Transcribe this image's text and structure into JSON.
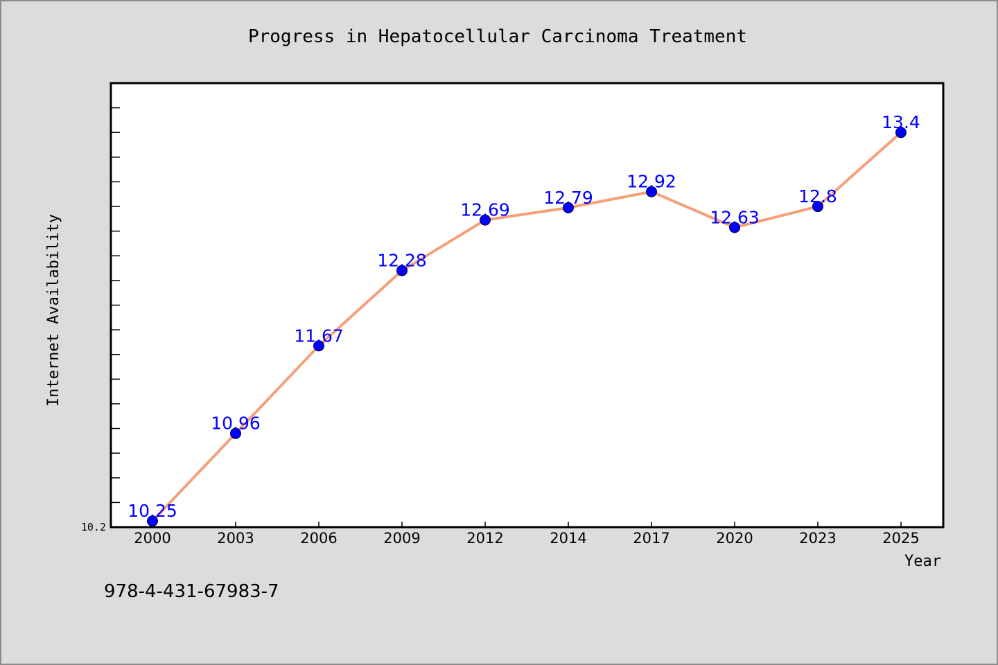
{
  "chart_data": {
    "type": "line",
    "title": "Progress in Hepatocellular Carcinoma Treatment",
    "xlabel": "Year",
    "ylabel": "Internet Availability",
    "categories": [
      "2000",
      "2003",
      "2006",
      "2009",
      "2012",
      "2014",
      "2017",
      "2020",
      "2023",
      "2025"
    ],
    "values": [
      10.25,
      10.96,
      11.67,
      12.28,
      12.69,
      12.79,
      12.92,
      12.63,
      12.8,
      13.4
    ],
    "data_labels": [
      "10.25",
      "10.96",
      "11.67",
      "12.28",
      "12.69",
      "12.79",
      "12.92",
      "12.63",
      "12.8",
      "13.4"
    ],
    "ylim": [
      10.2,
      13.8
    ],
    "ytick_label": "10.2",
    "minor_ytick_step": 0.2,
    "grid": false,
    "line_color": "#f4a07a",
    "marker_color": "#0000ff",
    "label_color": "#0000ff"
  },
  "footnote": "978-4-431-67983-7"
}
